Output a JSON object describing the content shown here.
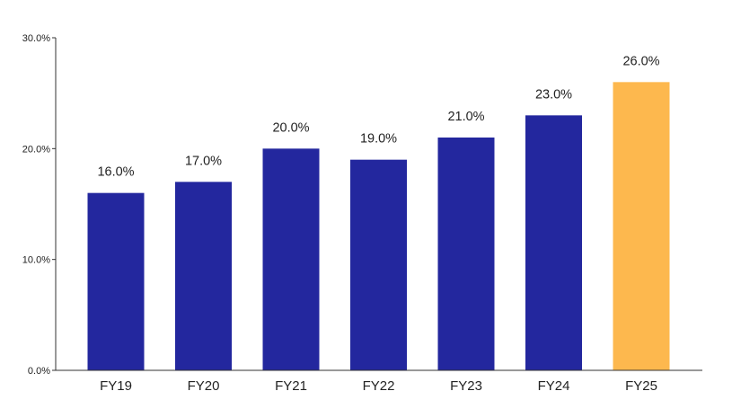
{
  "chart_data": {
    "type": "bar",
    "title": "",
    "xlabel": "",
    "ylabel": "",
    "categories": [
      "FY19",
      "FY20",
      "FY21",
      "FY22",
      "FY23",
      "FY24",
      "FY25"
    ],
    "values": [
      16.0,
      17.0,
      20.0,
      19.0,
      21.0,
      23.0,
      26.0
    ],
    "data_labels": [
      "16.0%",
      "17.0%",
      "20.0%",
      "19.0%",
      "21.0%",
      "23.0%",
      "26.0%"
    ],
    "yticks": [
      "0.0%",
      "10.0%",
      "20.0%",
      "30.0%"
    ],
    "ytick_values": [
      0,
      10,
      20,
      30
    ],
    "ylim": [
      0,
      30
    ],
    "grid": false,
    "legend": "none",
    "colors": {
      "bar": "#23279e",
      "highlight": "#fdb84e",
      "highlight_index": 6,
      "axis": "#333333",
      "text": "#222222"
    }
  }
}
